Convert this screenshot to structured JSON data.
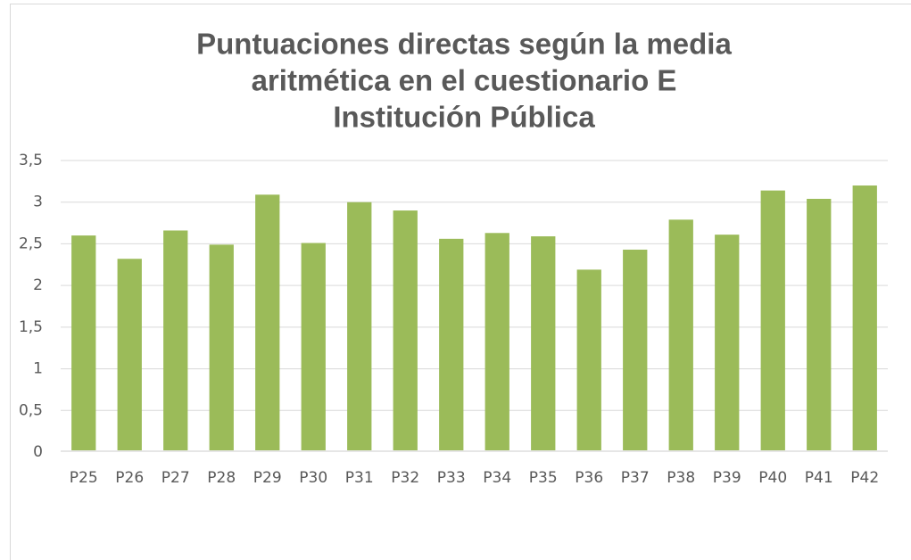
{
  "chart_data": {
    "type": "bar",
    "title": [
      "Puntuaciones directas según la media",
      "aritmética en el cuestionario E",
      "Institución Pública"
    ],
    "categories": [
      "P25",
      "P26",
      "P27",
      "P28",
      "P29",
      "P30",
      "P31",
      "P32",
      "P33",
      "P34",
      "P35",
      "P36",
      "P37",
      "P38",
      "P39",
      "P40",
      "P41",
      "P42"
    ],
    "values": [
      2.6,
      2.32,
      2.66,
      2.49,
      3.09,
      2.51,
      3.0,
      2.9,
      2.56,
      2.63,
      2.59,
      2.19,
      2.43,
      2.79,
      2.61,
      3.14,
      3.04,
      3.2
    ],
    "color": "#9bbb59",
    "ylim": [
      0,
      3.5
    ],
    "yticks": [
      0,
      {
        "value": 0.5,
        "label": "0,5"
      },
      1,
      {
        "value": 1.5,
        "label": "1,5"
      },
      2,
      {
        "value": 2.5,
        "label": "2,5"
      },
      3,
      {
        "value": 3.5,
        "label": "3,5"
      }
    ],
    "grid": true
  }
}
